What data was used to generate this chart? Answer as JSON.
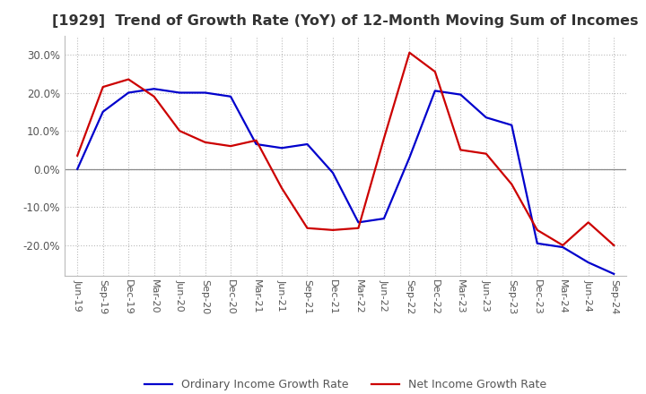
{
  "title": "[1929]  Trend of Growth Rate (YoY) of 12-Month Moving Sum of Incomes",
  "title_fontsize": 11.5,
  "ylim": [
    -0.28,
    0.35
  ],
  "yticks": [
    -0.2,
    -0.1,
    0.0,
    0.1,
    0.2,
    0.3
  ],
  "background_color": "#ffffff",
  "grid_color": "#bbbbbb",
  "ordinary_color": "#0000cc",
  "net_color": "#cc0000",
  "x_labels": [
    "Jun-19",
    "Sep-19",
    "Dec-19",
    "Mar-20",
    "Jun-20",
    "Sep-20",
    "Dec-20",
    "Mar-21",
    "Jun-21",
    "Sep-21",
    "Dec-21",
    "Mar-22",
    "Jun-22",
    "Sep-22",
    "Dec-22",
    "Mar-23",
    "Jun-23",
    "Sep-23",
    "Dec-23",
    "Mar-24",
    "Jun-24",
    "Sep-24"
  ],
  "ordinary_income": [
    0.0,
    0.15,
    0.2,
    0.21,
    0.2,
    0.2,
    0.19,
    0.065,
    0.055,
    0.065,
    -0.01,
    -0.14,
    -0.13,
    0.03,
    0.205,
    0.195,
    0.135,
    0.115,
    -0.195,
    -0.205,
    -0.245,
    -0.275
  ],
  "net_income": [
    0.035,
    0.215,
    0.235,
    0.19,
    0.1,
    0.07,
    0.06,
    0.075,
    -0.05,
    -0.155,
    -0.16,
    -0.155,
    0.08,
    0.305,
    0.255,
    0.05,
    0.04,
    -0.04,
    -0.16,
    -0.2,
    -0.14,
    -0.2
  ],
  "line_width": 1.6
}
